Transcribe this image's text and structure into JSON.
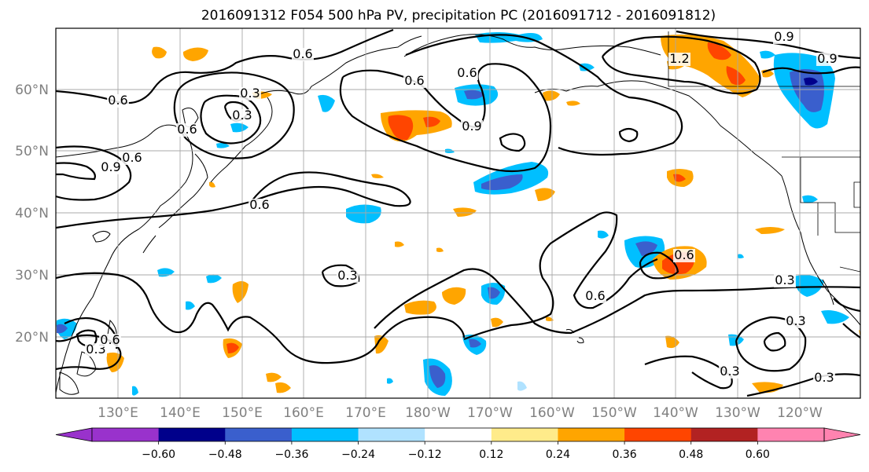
{
  "title": "2016091312 F054 500 hPa PV, precipitation PC (2016091712 - 2016091812)",
  "lat_labels": [
    "60°N",
    "50°N",
    "40°N",
    "30°N",
    "20°N"
  ],
  "lon_labels": [
    "130°E",
    "140°E",
    "150°E",
    "160°E",
    "170°E",
    "180°W",
    "170°W",
    "160°W",
    "150°W",
    "140°W",
    "130°W",
    "120°W"
  ],
  "colorbar": {
    "ticks": [
      "−0.60",
      "−0.48",
      "−0.36",
      "−0.24",
      "−0.12",
      "0.12",
      "0.24",
      "0.36",
      "0.48",
      "0.60"
    ],
    "colors": [
      "#9932cc",
      "#00008b",
      "#3a5fcd",
      "#00bfff",
      "#b0e2ff",
      "#ffffff",
      "#ffeb8a",
      "#ffa500",
      "#ff4500",
      "#b22222",
      "#ff83b0"
    ]
  },
  "contour_labels": [
    "0.6",
    "0.6",
    "0.6",
    "0.6",
    "0.6",
    "0.6",
    "0.6",
    "0.6",
    "0.9",
    "0.9",
    "0.9",
    "0.9",
    "0.3",
    "0.3",
    "0.3",
    "0.3",
    "0.3",
    "0.3",
    "1.2",
    "0.3",
    "0.3",
    "0.6",
    "0.6"
  ]
}
